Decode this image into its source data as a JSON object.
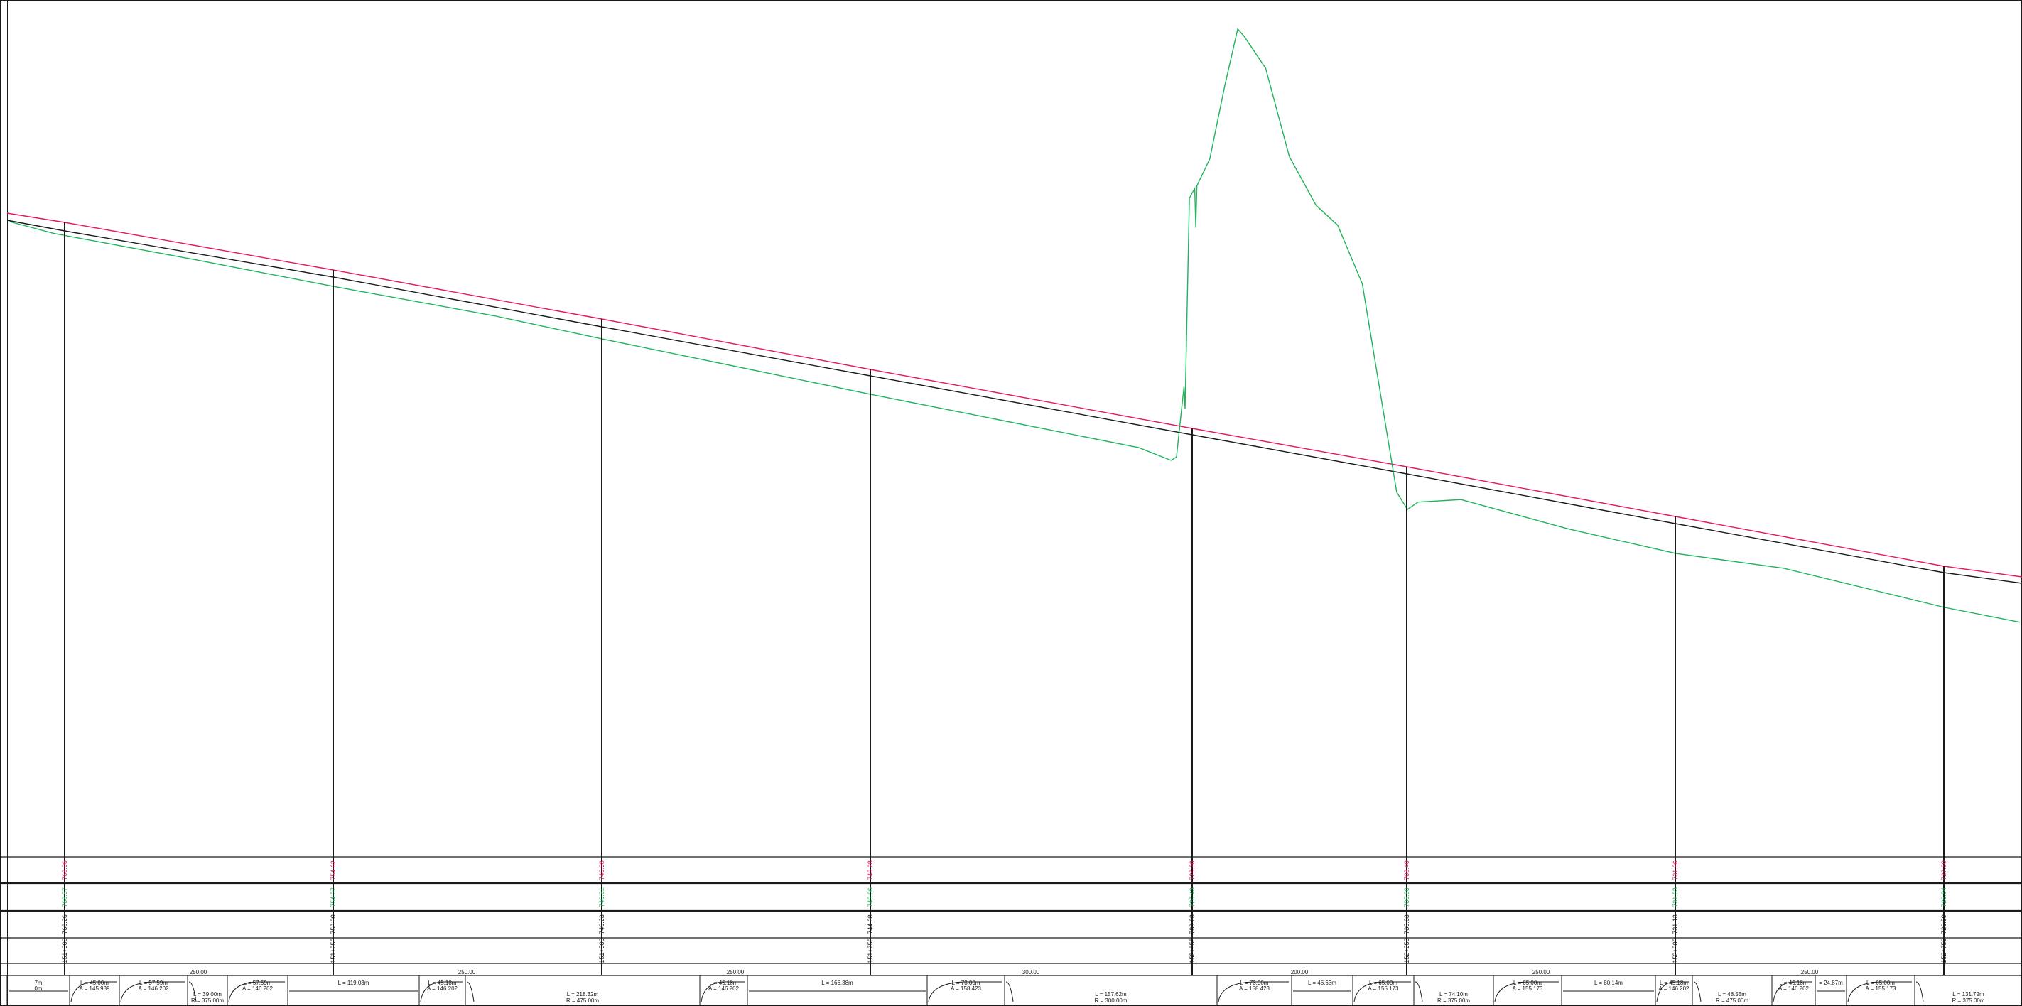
{
  "colors": {
    "design_line": "#e8175d",
    "ground_line": "#1fb35a",
    "profile_line": "#1a1a1a",
    "red_text": "#e8175d",
    "green_text": "#1fb35a",
    "black_text": "#1a1a1a"
  },
  "stations": [
    {
      "chainage": "151+000",
      "design": "768.96",
      "ground": "768.57",
      "existing": "768.26"
    },
    {
      "chainage": "151+250",
      "design": "754.62",
      "ground": "754.07",
      "existing": "753.90"
    },
    {
      "chainage": "151+500",
      "design": "740.98",
      "ground": "740.61",
      "existing": "740.23"
    },
    {
      "chainage": "151+750",
      "design": "745.28",
      "ground": "745.06",
      "existing": "744.08"
    },
    {
      "chainage": "152+050",
      "design": "720.90",
      "ground": "720.43",
      "existing": "739.23"
    },
    {
      "chainage": "152+250",
      "design": "708.40",
      "ground": "705.80",
      "existing": "735.63"
    },
    {
      "chainage": "152+500",
      "design": "731.96",
      "ground": "731.63",
      "existing": "731.13"
    },
    {
      "chainage": "152+750",
      "design": "727.80",
      "ground": "726.84",
      "existing": "726.59"
    }
  ],
  "ground_profile": [
    {
      "chainage": 150949,
      "elevation": 765.2
    },
    {
      "chainage": 150990,
      "elevation": 762.8
    },
    {
      "chainage": 151120,
      "elevation": 757.5
    },
    {
      "chainage": 151250,
      "elevation": 752.0
    },
    {
      "chainage": 151400,
      "elevation": 746.0
    },
    {
      "chainage": 151500,
      "elevation": 741.3
    },
    {
      "chainage": 151750,
      "elevation": 730.0
    },
    {
      "chainage": 152000,
      "elevation": 719.1
    },
    {
      "chainage": 152030,
      "elevation": 716.5
    },
    {
      "chainage": 152035,
      "elevation": 717.2
    },
    {
      "chainage": 152042,
      "elevation": 731.5
    },
    {
      "chainage": 152043,
      "elevation": 727.0
    },
    {
      "chainage": 152047,
      "elevation": 770.0
    },
    {
      "chainage": 152052,
      "elevation": 772.0
    },
    {
      "chainage": 152053,
      "elevation": 764.0
    },
    {
      "chainage": 152054,
      "elevation": 772.5
    },
    {
      "chainage": 152066,
      "elevation": 778.0
    },
    {
      "chainage": 152080,
      "elevation": 793.0
    },
    {
      "chainage": 152092,
      "elevation": 804.5
    },
    {
      "chainage": 152098,
      "elevation": 803.0
    },
    {
      "chainage": 152118,
      "elevation": 796.5
    },
    {
      "chainage": 152140,
      "elevation": 778.5
    },
    {
      "chainage": 152165,
      "elevation": 768.5
    },
    {
      "chainage": 152185,
      "elevation": 764.5
    },
    {
      "chainage": 152208,
      "elevation": 752.5
    },
    {
      "chainage": 152240,
      "elevation": 710.0
    },
    {
      "chainage": 152250,
      "elevation": 706.5
    },
    {
      "chainage": 152260,
      "elevation": 708.0
    },
    {
      "chainage": 152300,
      "elevation": 708.5
    },
    {
      "chainage": 152400,
      "elevation": 702.5
    },
    {
      "chainage": 152500,
      "elevation": 697.5
    },
    {
      "chainage": 152600,
      "elevation": 694.5
    },
    {
      "chainage": 152750,
      "elevation": 686.5
    },
    {
      "chainage": 152820,
      "elevation": 683.5
    }
  ],
  "chainage_ticks": [
    "250.00",
    "250.00",
    "250.00",
    "300.00",
    "200.00",
    "250.00",
    "250.00"
  ],
  "alignment_elements": [
    {
      "line1": "7m",
      "line2": "0m"
    },
    {
      "line1": "L = 45.00m",
      "line2": "A = 145.939"
    },
    {
      "line1": "L = 57.59m",
      "line2": "A = 146.202"
    },
    {
      "line1": "L = 39.00m",
      "line2": "R = 375.00m"
    },
    {
      "line1": "L = 57.59m",
      "line2": "A = 146.202"
    },
    {
      "line1": "L = 119.03m",
      "line2": ""
    },
    {
      "line1": "L = 45.18m",
      "line2": "A = 146.202"
    },
    {
      "line1": "L = 218.32m",
      "line2": "R = 475.00m"
    },
    {
      "line1": "L = 45.18m",
      "line2": "A = 146.202"
    },
    {
      "line1": "L = 166.38m",
      "line2": ""
    },
    {
      "line1": "L = 73.00m",
      "line2": "A = 158.423"
    },
    {
      "line1": "L = 157.62m",
      "line2": "R = 300.00m"
    },
    {
      "line1": "L = 73.00m",
      "line2": "A = 158.423"
    },
    {
      "line1": "L = 46.63m",
      "line2": ""
    },
    {
      "line1": "L = 65.00m",
      "line2": "A = 155.173"
    },
    {
      "line1": "L = 74.10m",
      "line2": "R = 375.00m"
    },
    {
      "line1": "L = 65.00m",
      "line2": "A = 155.173"
    },
    {
      "line1": "L = 80.14m",
      "line2": ""
    },
    {
      "line1": "L = 45.18m",
      "line2": "A = 146.202"
    },
    {
      "line1": "L = 48.55m",
      "line2": "R = 475.00m"
    },
    {
      "line1": "L = 45.18m",
      "line2": "A = 146.202"
    },
    {
      "line1": "= 24.87m",
      "line2": ""
    },
    {
      "line1": "L = 65.00m",
      "line2": "A = 155.173"
    },
    {
      "line1": "L = 131.72m",
      "line2": "R = 375.00m"
    }
  ]
}
